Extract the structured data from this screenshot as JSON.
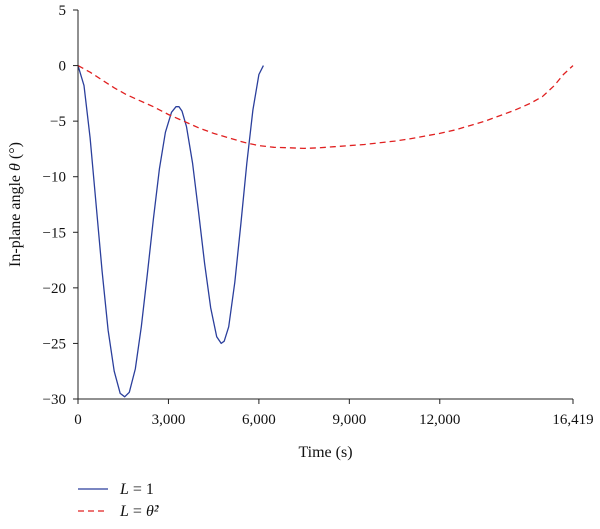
{
  "chart_data": {
    "type": "line",
    "title": "",
    "xlabel": "Time (s)",
    "ylabel_parts": [
      "In-plane angle ",
      "θ",
      " (°)"
    ],
    "xlim": [
      0,
      16419
    ],
    "ylim": [
      -30,
      5
    ],
    "x_ticks": [
      0,
      3000,
      6000,
      9000,
      12000,
      16419
    ],
    "x_tick_labels": [
      "0",
      "3,000",
      "6,000",
      "9,000",
      "12,000",
      "16,419"
    ],
    "y_ticks": [
      5,
      0,
      -5,
      -10,
      -15,
      -20,
      -25,
      -30
    ],
    "y_tick_labels": [
      "5",
      "0",
      "−5",
      "−10",
      "−15",
      "−20",
      "−25",
      "−30"
    ],
    "grid": false,
    "legend_position": "bottom-left",
    "series": [
      {
        "name": "L = 1",
        "name_parts": [
          "L",
          " = 1",
          ""
        ],
        "color": "#2b3f9c",
        "dash": "solid",
        "x": [
          0,
          200,
          400,
          600,
          800,
          1000,
          1200,
          1400,
          1550,
          1700,
          1900,
          2100,
          2300,
          2500,
          2700,
          2900,
          3100,
          3250,
          3350,
          3450,
          3600,
          3800,
          4000,
          4200,
          4400,
          4600,
          4750,
          4850,
          5000,
          5200,
          5400,
          5600,
          5800,
          6000,
          6150
        ],
        "y": [
          0,
          -1.8,
          -6.5,
          -12.5,
          -18.5,
          -23.8,
          -27.5,
          -29.5,
          -29.8,
          -29.4,
          -27.3,
          -23.5,
          -18.8,
          -13.8,
          -9.3,
          -6.0,
          -4.2,
          -3.7,
          -3.7,
          -4.1,
          -5.5,
          -8.8,
          -13.2,
          -17.8,
          -21.8,
          -24.4,
          -25.0,
          -24.8,
          -23.5,
          -19.5,
          -14.3,
          -8.8,
          -4.0,
          -0.8,
          0
        ]
      },
      {
        "name": "L = θ̇²",
        "name_parts": [
          "L",
          " = ",
          "θ̇²"
        ],
        "color": "#e02020",
        "dash": "dashed",
        "x": [
          0,
          400,
          800,
          1200,
          1600,
          2000,
          2500,
          3000,
          3500,
          4000,
          4500,
          5000,
          5500,
          6000,
          6500,
          7000,
          7500,
          8000,
          8500,
          9000,
          9500,
          10000,
          10500,
          11000,
          11500,
          12000,
          12500,
          13000,
          13500,
          14000,
          14500,
          15000,
          15400,
          15800,
          16100,
          16419
        ],
        "y": [
          0,
          -0.6,
          -1.3,
          -2.0,
          -2.6,
          -3.1,
          -3.7,
          -4.4,
          -5.0,
          -5.6,
          -6.1,
          -6.5,
          -6.9,
          -7.2,
          -7.35,
          -7.4,
          -7.45,
          -7.4,
          -7.3,
          -7.2,
          -7.1,
          -6.95,
          -6.8,
          -6.6,
          -6.35,
          -6.1,
          -5.8,
          -5.4,
          -5.0,
          -4.5,
          -4.0,
          -3.4,
          -2.8,
          -1.8,
          -0.8,
          0
        ]
      }
    ]
  }
}
